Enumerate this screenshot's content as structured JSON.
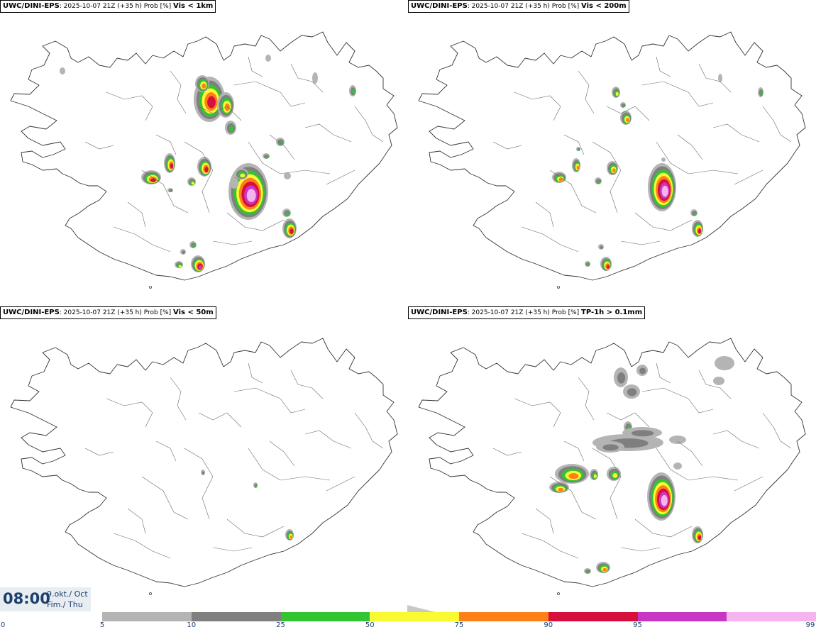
{
  "panels": [
    {
      "model": "UWC/DINI-EPS",
      "run": ": 2025-10-07 21Z (+35 h) Prob [%] ",
      "variable": "Vis < 1km",
      "intensity": "high"
    },
    {
      "model": "UWC/DINI-EPS",
      "run": ": 2025-10-07 21Z (+35 h) Prob [%] ",
      "variable": "Vis < 200m",
      "intensity": "medium"
    },
    {
      "model": "UWC/DINI-EPS",
      "run": ": 2025-10-07 21Z (+35 h) Prob [%] ",
      "variable": "Vis < 50m",
      "intensity": "low"
    },
    {
      "model": "UWC/DINI-EPS",
      "run": ": 2025-10-07 21Z (+35 h) Prob [%] ",
      "variable": "TP-1h > 0.1mm",
      "intensity": "precip"
    }
  ],
  "clock": {
    "time": "08:00",
    "date_line1": "9.okt./ Oct",
    "date_line2": "Fim./ Thu"
  },
  "colorbar": {
    "ticks": [
      "0",
      "5",
      "10",
      "25",
      "50",
      "75",
      "90",
      "95",
      "99"
    ],
    "colors": [
      "#b4b4b4",
      "#7f7f7f",
      "#33c433",
      "#fafa33",
      "#ff7f19",
      "#d70f3d",
      "#c837c4",
      "#f5b4f0"
    ]
  }
}
